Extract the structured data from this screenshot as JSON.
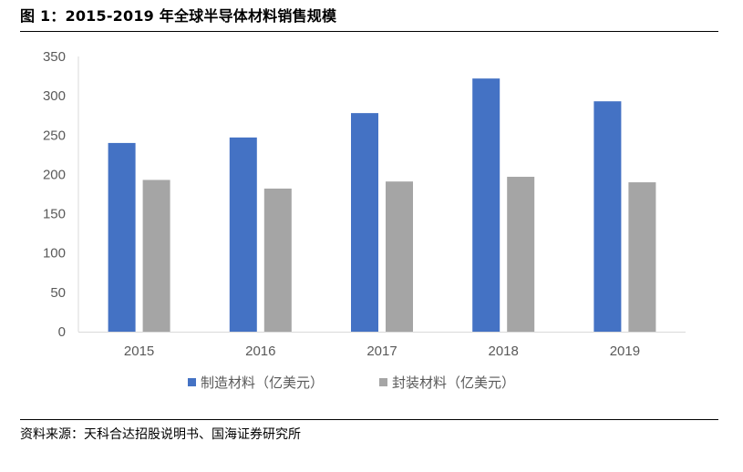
{
  "figure_title": "图 1：2015-2019 年全球半导体材料销售规模",
  "source": "资料来源：天科合达招股说明书、国海证券研究所",
  "chart_data": {
    "type": "bar",
    "categories": [
      "2015",
      "2016",
      "2017",
      "2018",
      "2019"
    ],
    "series": [
      {
        "name": "制造材料（亿美元）",
        "color": "#4472c4",
        "values": [
          240,
          247,
          278,
          322,
          293
        ]
      },
      {
        "name": "封装材料（亿美元）",
        "color": "#a5a5a5",
        "values": [
          193,
          182,
          191,
          197,
          190
        ]
      }
    ],
    "ylim": [
      0,
      350
    ],
    "yticks": [
      0,
      50,
      100,
      150,
      200,
      250,
      300,
      350
    ],
    "grid": false,
    "legend": "bottom-center",
    "xlabel": "",
    "ylabel": ""
  }
}
